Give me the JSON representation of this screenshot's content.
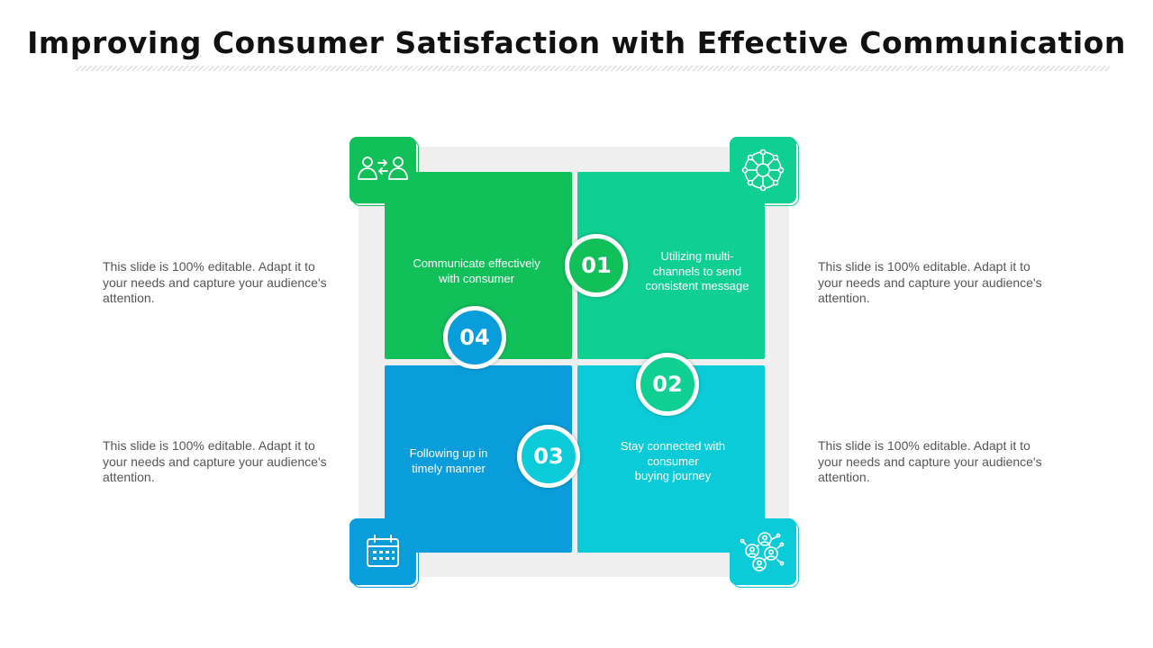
{
  "title": "Improving Consumer Satisfaction with Effective Communication",
  "side_texts": {
    "top_left": "This slide is 100% editable. Adapt it to your needs and capture your audience's attention.",
    "bottom_left": "This slide is 100% editable. Adapt it to your needs and capture your audience's attention.",
    "top_right": "This slide is 100% editable. Adapt it to your needs and capture your audience's attention.",
    "bottom_right": "This slide is 100% editable. Adapt it to your needs and capture your audience's attention."
  },
  "steps": [
    {
      "number": "01",
      "text": "Communicate effectively\nwith consumer",
      "color": "#12c05a"
    },
    {
      "number": "02",
      "text": "Utilizing multi-\nchannels to send\nconsistent message",
      "color": "#0fcf91"
    },
    {
      "number": "03",
      "text": "Stay connected with\nconsumer\nbuying journey",
      "color": "#0ccbd8"
    },
    {
      "number": "04",
      "text": "Following up in\ntimely manner",
      "color": "#0a9ddc"
    }
  ],
  "icons": {
    "top_left": "people-exchange-icon",
    "top_right": "network-sphere-icon",
    "bottom_left": "calendar-icon",
    "bottom_right": "connected-users-icon"
  }
}
